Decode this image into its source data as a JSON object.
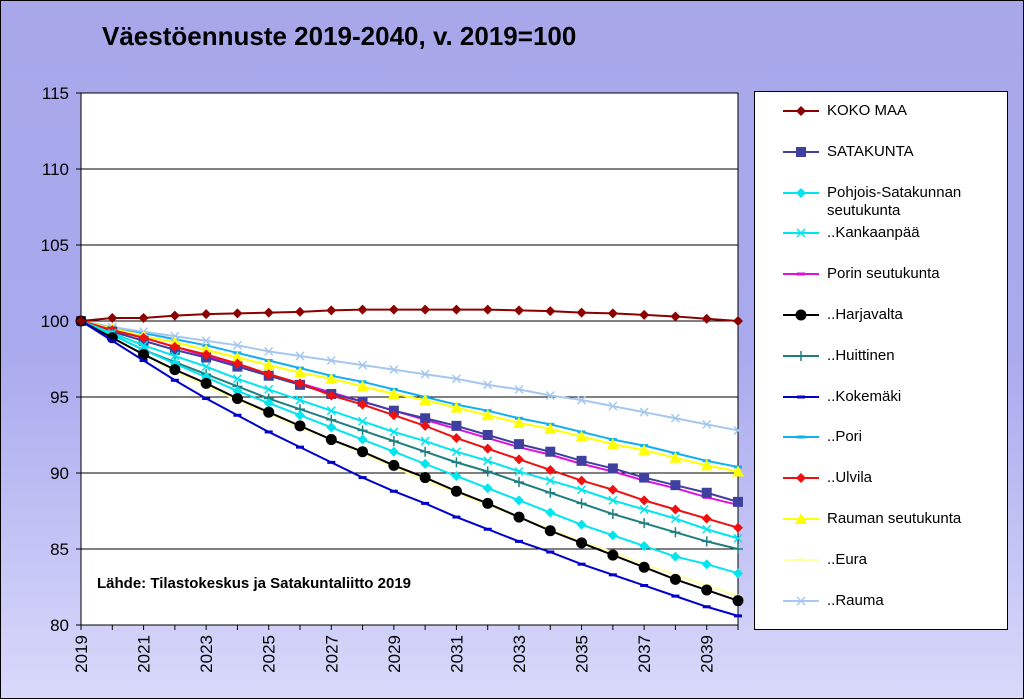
{
  "chart_data": {
    "type": "line",
    "title": "Väestöennuste  2019-2040, v. 2019=100",
    "source": "Lähde: Tilastokeskus ja Satakuntaliitto 2019",
    "ylim": [
      80,
      115
    ],
    "yticks": [
      "80",
      "85",
      "90",
      "95",
      "100",
      "105",
      "110",
      "115"
    ],
    "xticks": [
      "2019",
      "2021",
      "2023",
      "2025",
      "2027",
      "2029",
      "2031",
      "2033",
      "2035",
      "2037",
      "2039"
    ],
    "x": [
      2019,
      2020,
      2021,
      2022,
      2023,
      2024,
      2025,
      2026,
      2027,
      2028,
      2029,
      2030,
      2031,
      2032,
      2033,
      2034,
      2035,
      2036,
      2037,
      2038,
      2039,
      2040
    ],
    "grid": "horizontal",
    "legend_position": "right",
    "series": [
      {
        "name": "KOKO MAA",
        "color": "#8b0000",
        "marker": "diamond",
        "values": [
          100,
          100.2,
          100.2,
          100.35,
          100.45,
          100.5,
          100.55,
          100.6,
          100.7,
          100.75,
          100.75,
          100.75,
          100.75,
          100.75,
          100.7,
          100.65,
          100.55,
          100.5,
          100.4,
          100.3,
          100.15,
          100.0
        ]
      },
      {
        "name": "SATAKUNTA",
        "color": "#3f3f9f",
        "marker": "square",
        "values": [
          100,
          99.3,
          98.7,
          98.1,
          97.6,
          97.0,
          96.4,
          95.8,
          95.2,
          94.7,
          94.1,
          93.6,
          93.1,
          92.5,
          91.9,
          91.4,
          90.8,
          90.3,
          89.7,
          89.2,
          88.7,
          88.1
        ]
      },
      {
        "name": "Pohjois-Satakunnan\nseutukunta",
        "color": "#00e5ee",
        "marker": "diamond",
        "values": [
          100,
          99.1,
          98.1,
          97.2,
          96.3,
          95.4,
          94.6,
          93.8,
          93.0,
          92.2,
          91.4,
          90.6,
          89.8,
          89.0,
          88.2,
          87.4,
          86.6,
          85.9,
          85.2,
          84.5,
          84.0,
          83.4
        ]
      },
      {
        "name": "..Kankaanpää",
        "color": "#00e5ee",
        "marker": "x",
        "values": [
          100,
          99.2,
          98.4,
          97.7,
          97.0,
          96.2,
          95.5,
          94.8,
          94.1,
          93.4,
          92.7,
          92.1,
          91.4,
          90.8,
          90.1,
          89.5,
          88.9,
          88.2,
          87.6,
          87.0,
          86.3,
          85.7
        ]
      },
      {
        "name": "Porin seutukunta",
        "color": "#e010e0",
        "marker": "dash",
        "values": [
          100,
          99.4,
          98.9,
          98.3,
          97.7,
          97.1,
          96.5,
          95.9,
          95.3,
          94.7,
          94.1,
          93.5,
          92.9,
          92.3,
          91.7,
          91.2,
          90.6,
          90.1,
          89.5,
          89.0,
          88.4,
          87.9
        ]
      },
      {
        "name": "..Harjavalta",
        "color": "#000000",
        "marker": "circle",
        "values": [
          100,
          98.9,
          97.8,
          96.8,
          95.9,
          94.9,
          94.0,
          93.1,
          92.2,
          91.4,
          90.5,
          89.7,
          88.8,
          88.0,
          87.1,
          86.2,
          85.4,
          84.6,
          83.8,
          83.0,
          82.3,
          81.6
        ]
      },
      {
        "name": "..Huittinen",
        "color": "#1f7f7f",
        "marker": "plus",
        "values": [
          100,
          99.1,
          98.1,
          97.3,
          96.5,
          95.7,
          94.9,
          94.2,
          93.5,
          92.8,
          92.1,
          91.4,
          90.7,
          90.1,
          89.4,
          88.7,
          88.0,
          87.3,
          86.7,
          86.1,
          85.5,
          85.0
        ]
      },
      {
        "name": "..Kokemäki",
        "color": "#0000cc",
        "marker": "dash",
        "values": [
          100,
          98.7,
          97.4,
          96.1,
          94.9,
          93.8,
          92.7,
          91.7,
          90.7,
          89.7,
          88.8,
          88.0,
          87.1,
          86.3,
          85.5,
          84.8,
          84.0,
          83.3,
          82.6,
          81.9,
          81.2,
          80.6
        ]
      },
      {
        "name": "..Pori",
        "color": "#10b0f0",
        "marker": "dash",
        "values": [
          100,
          99.6,
          99.2,
          98.8,
          98.4,
          97.9,
          97.4,
          96.9,
          96.4,
          96.0,
          95.5,
          95.0,
          94.5,
          94.1,
          93.6,
          93.2,
          92.7,
          92.2,
          91.8,
          91.3,
          90.8,
          90.4
        ]
      },
      {
        "name": "..Ulvila",
        "color": "#ee1111",
        "marker": "diamond",
        "values": [
          100,
          99.4,
          98.9,
          98.3,
          97.8,
          97.2,
          96.5,
          95.9,
          95.1,
          94.5,
          93.8,
          93.1,
          92.3,
          91.6,
          90.9,
          90.2,
          89.5,
          88.9,
          88.2,
          87.6,
          87.0,
          86.4
        ]
      },
      {
        "name": "Rauman seutukunta",
        "color": "#ffff00",
        "marker": "triangle",
        "values": [
          100,
          99.5,
          99.0,
          98.6,
          98.1,
          97.6,
          97.1,
          96.6,
          96.2,
          95.7,
          95.2,
          94.8,
          94.3,
          93.8,
          93.3,
          92.9,
          92.4,
          91.9,
          91.5,
          91.0,
          90.5,
          90.1
        ]
      },
      {
        "name": "..Eura",
        "color": "#ffffaa",
        "marker": "dash",
        "values": [
          100,
          98.9,
          97.8,
          96.7,
          95.7,
          94.8,
          93.9,
          93.0,
          92.2,
          91.3,
          90.4,
          89.5,
          88.7,
          87.9,
          87.1,
          86.3,
          85.5,
          84.8,
          84.0,
          83.3,
          82.6,
          81.9
        ]
      },
      {
        "name": "..Rauma",
        "color": "#a6c8ee",
        "marker": "x",
        "values": [
          100,
          99.6,
          99.3,
          99.0,
          98.7,
          98.4,
          98.0,
          97.7,
          97.4,
          97.1,
          96.8,
          96.5,
          96.2,
          95.8,
          95.5,
          95.1,
          94.8,
          94.4,
          94.0,
          93.6,
          93.2,
          92.8
        ]
      }
    ]
  }
}
